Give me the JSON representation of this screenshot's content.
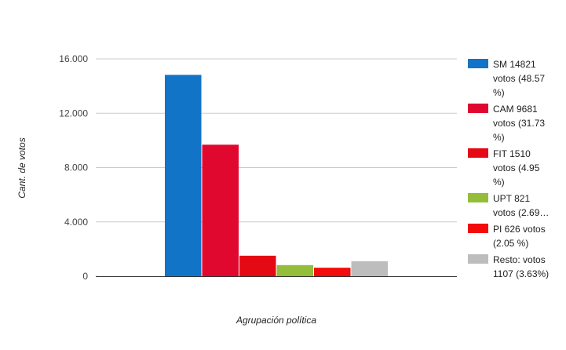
{
  "chart_data": {
    "type": "bar",
    "categories": [
      ""
    ],
    "series": [
      {
        "name": "SM 14821 votos (48.57 %)",
        "legend_lines": [
          "SM 14821",
          "votos (48.57",
          "%)"
        ],
        "values": [
          14821
        ],
        "color": "#1274c6"
      },
      {
        "name": "CAM 9681 votos (31.73 %)",
        "legend_lines": [
          "CAM 9681",
          "votos (31.73",
          "%)"
        ],
        "values": [
          9681
        ],
        "color": "#e0082f"
      },
      {
        "name": "FIT 1510 votos (4.95 %)",
        "legend_lines": [
          "FIT 1510",
          "votos (4.95",
          "%)"
        ],
        "values": [
          1510
        ],
        "color": "#e50914"
      },
      {
        "name": "UPT 821 votos (2.69…",
        "legend_lines": [
          "UPT 821",
          "votos (2.69…"
        ],
        "values": [
          821
        ],
        "color": "#94bd3a"
      },
      {
        "name": "PI 626 votos (2.05 %)",
        "legend_lines": [
          "PI 626 votos",
          "(2.05 %)"
        ],
        "values": [
          626
        ],
        "color": "#f40b0b"
      },
      {
        "name": "Resto: votos 1107 (3.63%)",
        "legend_lines": [
          "Resto: votos",
          "1107 (3.63%)"
        ],
        "values": [
          1107
        ],
        "color": "#bdbdbd"
      }
    ],
    "yticks": [
      {
        "value": 0,
        "label": "0"
      },
      {
        "value": 4000,
        "label": "4.000"
      },
      {
        "value": 8000,
        "label": "8.000"
      },
      {
        "value": 12000,
        "label": "12.000"
      },
      {
        "value": 16000,
        "label": "16.000"
      }
    ],
    "ylim": [
      0,
      16000
    ],
    "xlabel": "Agrupación política",
    "ylabel": "Cant. de votos",
    "grid": true,
    "legend_position": "right"
  }
}
